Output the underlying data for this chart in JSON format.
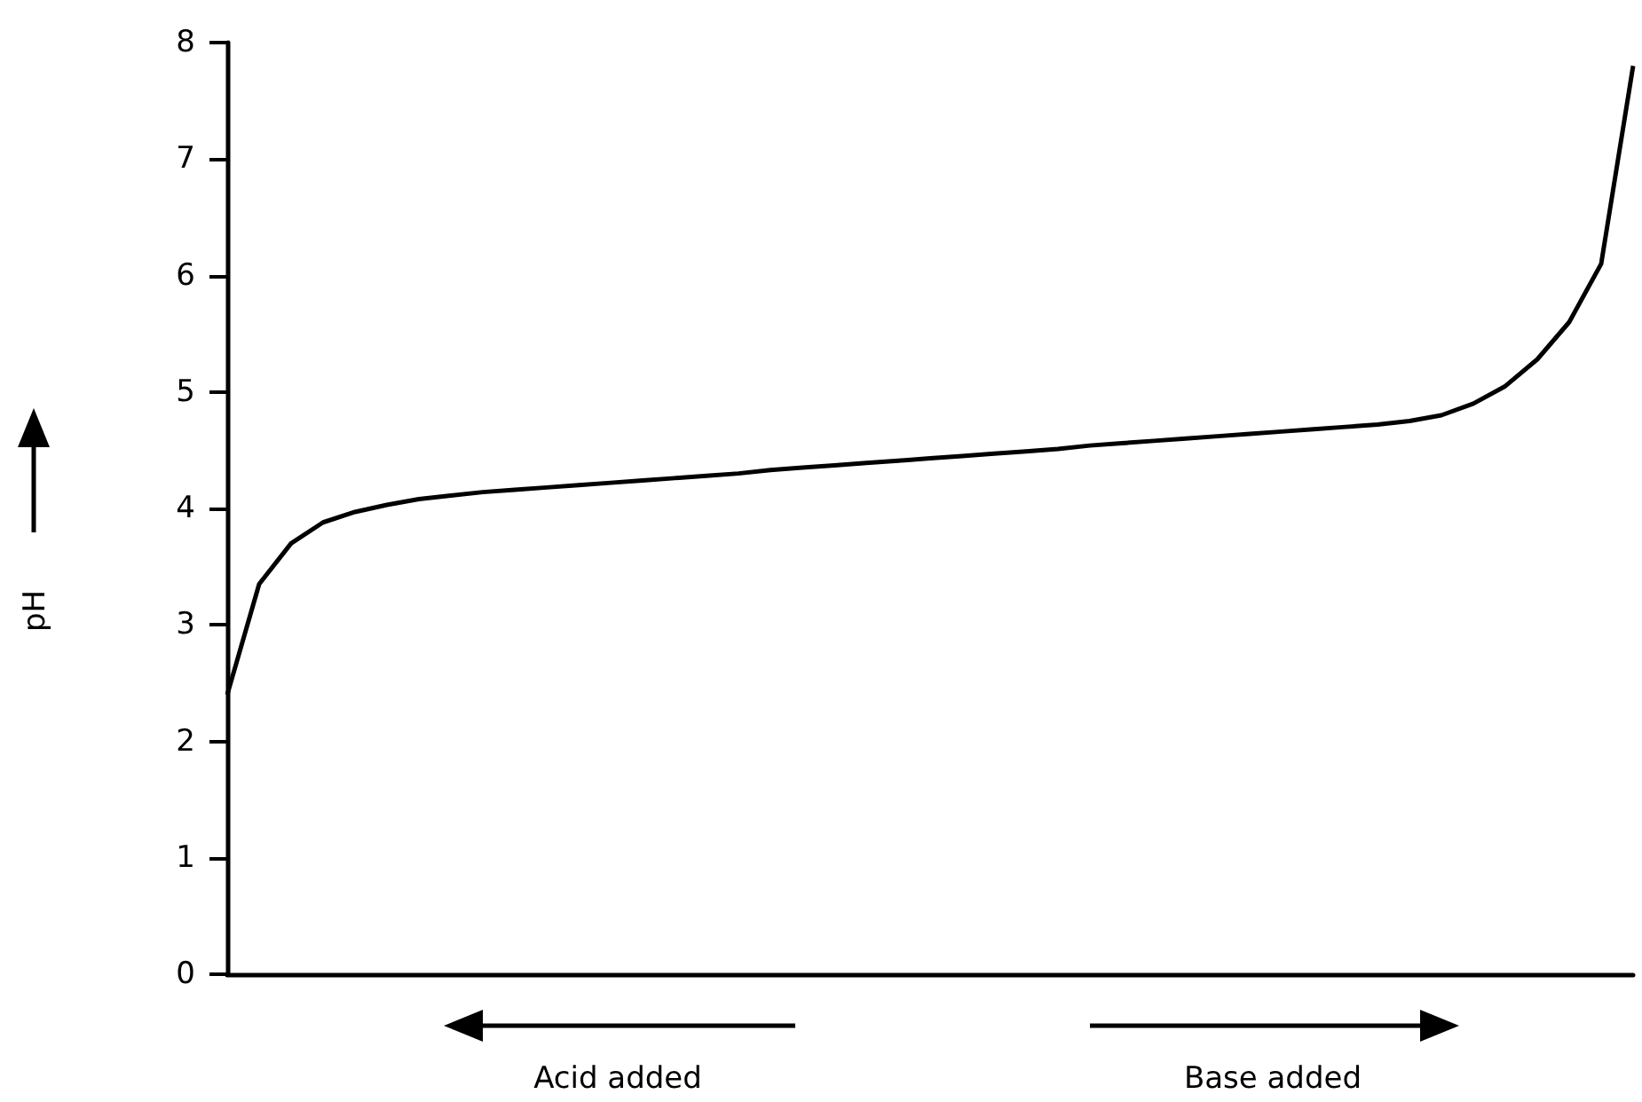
{
  "chart_data": {
    "type": "line",
    "ylabel": "pH",
    "annotations": [
      "Acid added",
      "Base added"
    ],
    "categories": [
      null,
      null,
      null,
      null,
      null,
      null,
      null,
      null,
      null,
      null,
      null,
      null,
      null,
      null,
      null,
      null,
      null,
      null,
      null,
      null,
      null,
      null,
      null,
      null,
      null,
      null,
      null,
      null,
      null,
      null,
      null,
      null,
      null,
      null,
      null,
      null,
      null,
      null,
      null,
      null,
      null,
      null,
      null,
      null,
      null
    ],
    "series": [
      {
        "color": "#000000",
        "values": [
          2.4,
          3.35,
          3.7,
          3.88,
          3.97,
          4.03,
          4.08,
          4.11,
          4.14,
          4.16,
          4.18,
          4.2,
          4.22,
          4.24,
          4.26,
          4.28,
          4.3,
          4.33,
          4.35,
          4.37,
          4.39,
          4.41,
          4.43,
          4.45,
          4.47,
          4.49,
          4.51,
          4.54,
          4.56,
          4.58,
          4.6,
          4.62,
          4.64,
          4.66,
          4.68,
          4.7,
          4.72,
          4.75,
          4.8,
          4.9,
          5.05,
          5.28,
          5.6,
          6.1,
          7.8
        ]
      }
    ],
    "ylim": [
      0,
      8
    ],
    "yticks": [
      0,
      1,
      2,
      3,
      4,
      5,
      6,
      7,
      8
    ],
    "tick_labels": "y"
  }
}
